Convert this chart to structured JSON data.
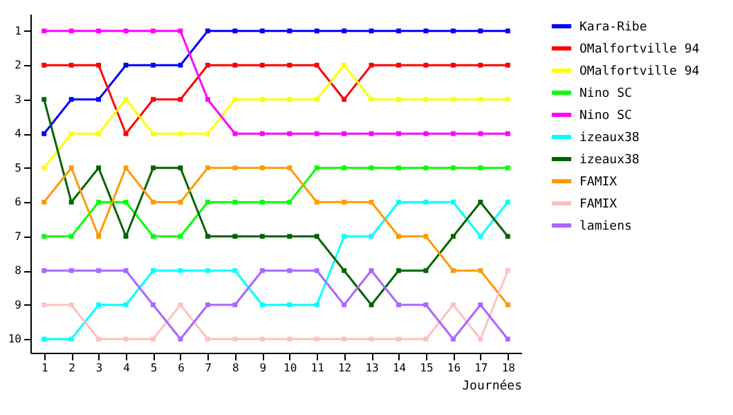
{
  "chart_data": {
    "type": "line",
    "xlabel": "Journées",
    "x": [
      1,
      2,
      3,
      4,
      5,
      6,
      7,
      8,
      9,
      10,
      11,
      12,
      13,
      14,
      15,
      16,
      17,
      18
    ],
    "xlim": [
      0.5,
      18.5
    ],
    "xticks": [
      1,
      2,
      3,
      4,
      5,
      6,
      7,
      8,
      9,
      10,
      11,
      12,
      13,
      14,
      15,
      16,
      17,
      18
    ],
    "ylim": [
      10.4,
      0.5
    ],
    "yticks": [
      1,
      2,
      3,
      4,
      5,
      6,
      7,
      8,
      9,
      10
    ],
    "grid": false,
    "legend": "right",
    "marker": "square",
    "line_style": "solid",
    "series": [
      {
        "name": "Kara-Ribe",
        "color": "#0000ff",
        "values": [
          4,
          3,
          3,
          2,
          2,
          2,
          1,
          1,
          1,
          1,
          1,
          1,
          1,
          1,
          1,
          1,
          1,
          1
        ]
      },
      {
        "name": "OMalfortville 94",
        "color": "#ff0000",
        "values": [
          2,
          2,
          2,
          4,
          3,
          3,
          2,
          2,
          2,
          2,
          2,
          3,
          2,
          2,
          2,
          2,
          2,
          2
        ]
      },
      {
        "name": "OMalfortville 94",
        "color": "#ffff00",
        "values": [
          5,
          4,
          4,
          3,
          4,
          4,
          4,
          3,
          3,
          3,
          3,
          2,
          3,
          3,
          3,
          3,
          3,
          3
        ]
      },
      {
        "name": "Nino SC",
        "color": "#00ff00",
        "values": [
          7,
          7,
          6,
          6,
          7,
          7,
          6,
          6,
          6,
          6,
          5,
          5,
          5,
          5,
          5,
          5,
          5,
          5
        ]
      },
      {
        "name": "Nino SC",
        "color": "#ff00ff",
        "values": [
          1,
          1,
          1,
          1,
          1,
          1,
          3,
          4,
          4,
          4,
          4,
          4,
          4,
          4,
          4,
          4,
          4,
          4
        ]
      },
      {
        "name": "izeaux38",
        "color": "#00ffff",
        "values": [
          10,
          10,
          9,
          9,
          8,
          8,
          8,
          8,
          9,
          9,
          9,
          7,
          7,
          6,
          6,
          6,
          7,
          6
        ]
      },
      {
        "name": "izeaux38",
        "color": "#006400",
        "values": [
          3,
          6,
          5,
          7,
          5,
          5,
          7,
          7,
          7,
          7,
          7,
          8,
          9,
          8,
          8,
          7,
          6,
          7
        ]
      },
      {
        "name": "FAMIX",
        "color": "#ff9900",
        "values": [
          6,
          5,
          7,
          5,
          6,
          6,
          5,
          5,
          5,
          5,
          6,
          6,
          6,
          7,
          7,
          8,
          8,
          9
        ]
      },
      {
        "name": "FAMIX",
        "color": "#ffc0c0",
        "values": [
          9,
          9,
          10,
          10,
          10,
          9,
          10,
          10,
          10,
          10,
          10,
          10,
          10,
          10,
          10,
          9,
          10,
          8
        ]
      },
      {
        "name": "lamiens",
        "color": "#aa66ff",
        "values": [
          8,
          8,
          8,
          8,
          9,
          10,
          9,
          9,
          8,
          8,
          8,
          9,
          8,
          9,
          9,
          10,
          9,
          10
        ]
      }
    ]
  }
}
